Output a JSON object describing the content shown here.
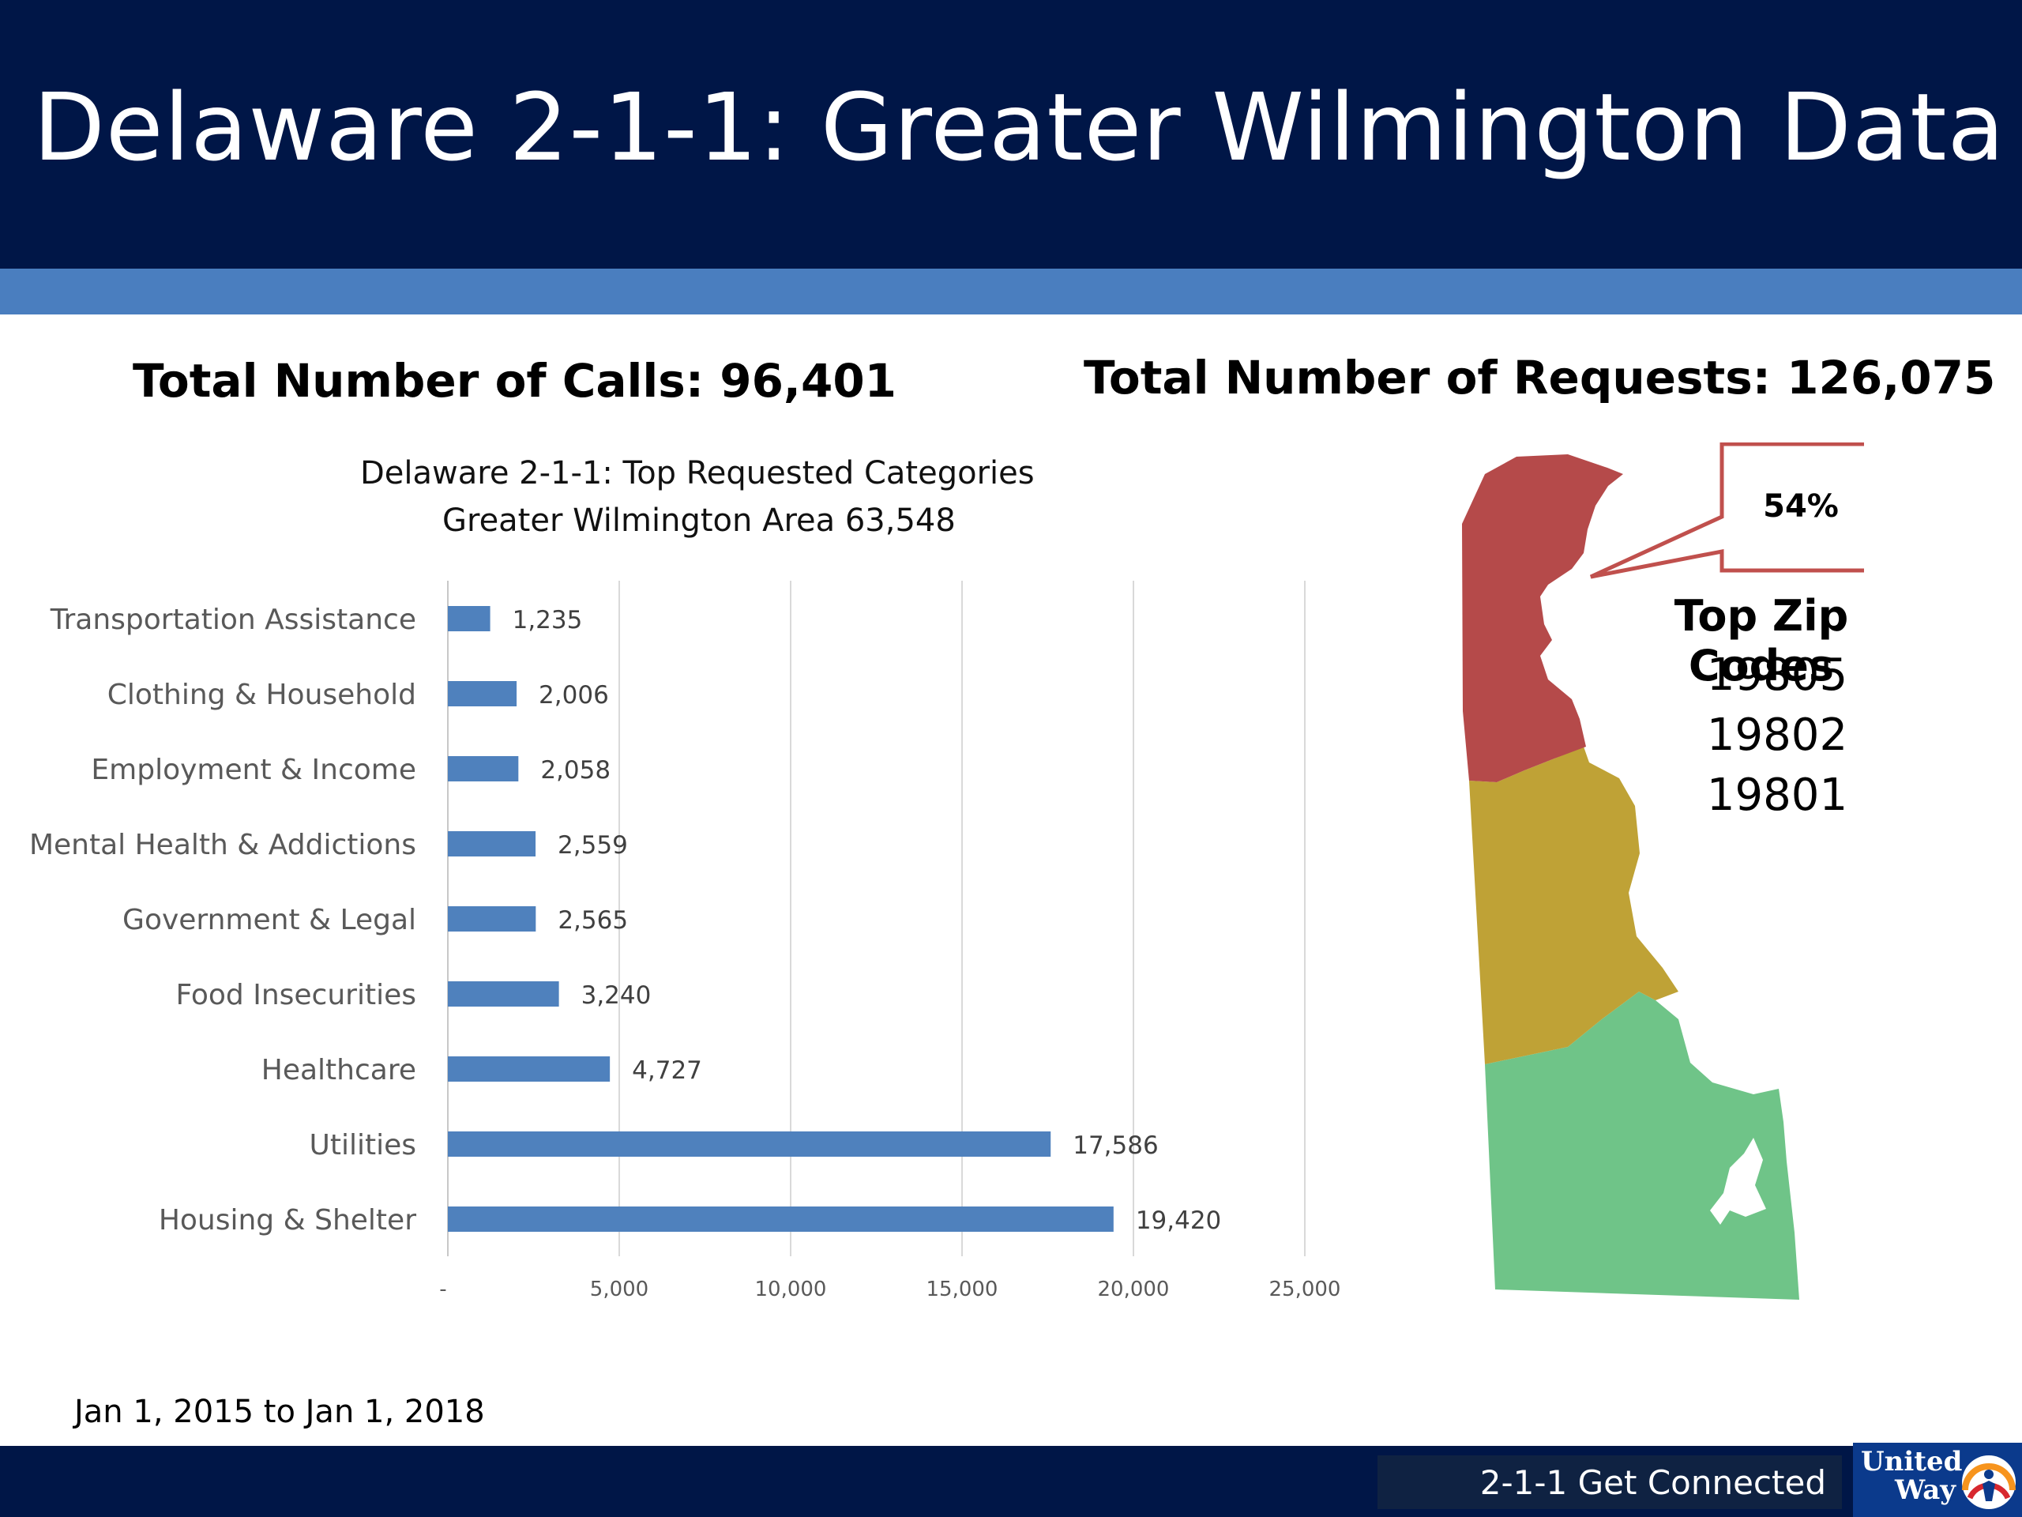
{
  "header": {
    "title": "Delaware 2-1-1: Greater Wilmington Data"
  },
  "stats": {
    "calls": "Total Number of Calls:  96,401",
    "requests": "Total Number of Requests:  126,075"
  },
  "chart_data": {
    "type": "bar",
    "orientation": "horizontal",
    "title": "Delaware 2-1-1: Top Requested Categories",
    "subtitle": "Greater Wilmington Area 63,548",
    "xlabel": "",
    "ylabel": "",
    "xlim": [
      0,
      25000
    ],
    "grid": true,
    "categories": [
      "Transportation Assistance",
      "Clothing & Household",
      "Employment & Income",
      "Mental Health & Addictions",
      "Government & Legal",
      "Food Insecurities",
      "Healthcare",
      "Utilities",
      "Housing & Shelter"
    ],
    "values": [
      1235,
      2006,
      2058,
      2559,
      2565,
      3240,
      4727,
      17586,
      19420
    ],
    "value_labels": [
      "1,235",
      "2,006",
      "2,058",
      "2,559",
      "2,565",
      "3,240",
      "4,727",
      "17,586",
      "19,420"
    ],
    "ticks": [
      0,
      5000,
      10000,
      15000,
      20000,
      25000
    ],
    "tick_labels": [
      "-",
      "5,000",
      "10,000",
      "15,000",
      "20,000",
      "25,000"
    ],
    "bar_color": "#4f81bd"
  },
  "map": {
    "callout": "54%",
    "zip_title": "Top Zip Codes",
    "zips": [
      "19805",
      "19802",
      "19801"
    ],
    "county_colors": {
      "new_castle": "#b54a4a",
      "kent": "#bfa236",
      "sussex": "#6fc488"
    }
  },
  "footer": {
    "date_range": "Jan 1, 2015 to Jan 1, 2018",
    "tagline": "2-1-1 Get Connected",
    "logo_text": "United Way"
  },
  "colors": {
    "header_bg": "#001647",
    "accent_bar": "#4a7ebf",
    "footer_bg": "#001647"
  }
}
